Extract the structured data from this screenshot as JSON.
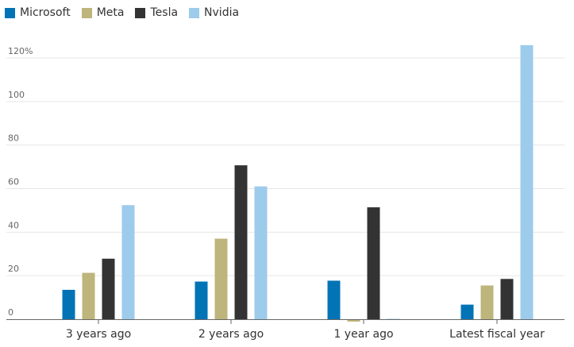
{
  "chart_data": {
    "type": "bar",
    "categories": [
      "3 years ago",
      "2 years ago",
      "1 year ago",
      "Latest fiscal year"
    ],
    "series": [
      {
        "name": "Microsoft",
        "color": "#0274b6",
        "values": [
          13.5,
          17.3,
          17.7,
          6.7
        ]
      },
      {
        "name": "Meta",
        "color": "#bdb57c",
        "values": [
          21.3,
          37.0,
          -1.1,
          15.5
        ]
      },
      {
        "name": "Tesla",
        "color": "#333333",
        "values": [
          27.8,
          70.7,
          51.4,
          18.5
        ]
      },
      {
        "name": "Nvidia",
        "color": "#9dcbec",
        "values": [
          52.4,
          61.0,
          0.2,
          125.9
        ]
      }
    ],
    "yticks": [
      0,
      20,
      40,
      60,
      80,
      100,
      120
    ],
    "ytick_labels": [
      "0",
      "20",
      "40",
      "60",
      "80",
      "100",
      "120%"
    ],
    "ylim": [
      0,
      120
    ],
    "grid": true,
    "legend_position": "top-left",
    "title": "",
    "xlabel": "",
    "ylabel": ""
  }
}
